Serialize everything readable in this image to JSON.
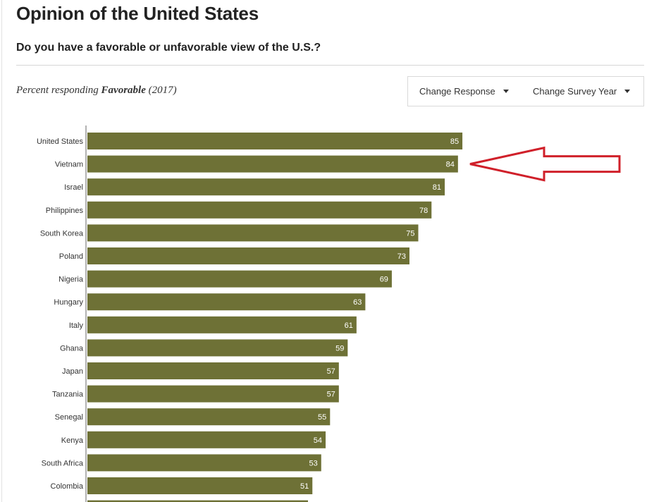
{
  "header": {
    "title": "Opinion of the United States",
    "question": "Do you have a favorable or unfavorable view of the U.S.?",
    "subtitle_prefix": "Percent responding",
    "subtitle_response": "Favorable",
    "subtitle_year": "(2017)"
  },
  "controls": {
    "change_response": "Change Response",
    "change_survey_year": "Change Survey Year"
  },
  "colors": {
    "bar": "#6e7136",
    "arrow": "#d0202a"
  },
  "annotation": {
    "arrow_points_to": "Vietnam"
  },
  "chart_data": {
    "type": "bar",
    "orientation": "horizontal",
    "title": "Opinion of the United States",
    "categories": [
      "United States",
      "Vietnam",
      "Israel",
      "Philippines",
      "South Korea",
      "Poland",
      "Nigeria",
      "Hungary",
      "Italy",
      "Ghana",
      "Japan",
      "Tanzania",
      "Senegal",
      "Kenya",
      "South Africa",
      "Colombia"
    ],
    "values": [
      85,
      84,
      81,
      78,
      75,
      73,
      69,
      63,
      61,
      59,
      57,
      57,
      55,
      54,
      53,
      51
    ],
    "xlim": [
      0,
      100
    ],
    "grid": false,
    "legend": "none"
  }
}
